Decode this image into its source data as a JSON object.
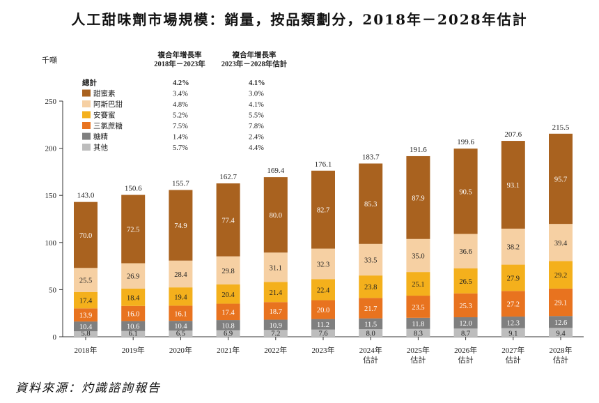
{
  "title": "人工甜味劑市場規模：銷量，按品類劃分，2018年－2028年估計",
  "source": "資料來源：灼識諮詢報告",
  "chart_data": {
    "type": "bar",
    "stacked": true,
    "ylabel": "千噸",
    "ylim": [
      0,
      250
    ],
    "yticks": [
      0,
      50,
      100,
      150,
      200,
      250
    ],
    "categories": [
      "2018年",
      "2019年",
      "2020年",
      "2021年",
      "2022年",
      "2023年",
      "2024年\n估計",
      "2025年\n估計",
      "2026年\n估計",
      "2027年\n估計",
      "2028年\n估計"
    ],
    "series": [
      {
        "name": "其他",
        "color": "#bdbdbd",
        "values": [
          5.8,
          6.1,
          6.5,
          6.9,
          7.2,
          7.6,
          8.0,
          8.3,
          8.7,
          9.1,
          9.4
        ]
      },
      {
        "name": "糖精",
        "color": "#7f7f7f",
        "values": [
          10.4,
          10.6,
          10.4,
          10.8,
          10.9,
          11.2,
          11.5,
          11.8,
          12.0,
          12.3,
          12.6
        ]
      },
      {
        "name": "三氯蔗糖",
        "color": "#e8731f",
        "values": [
          13.9,
          16.0,
          16.1,
          17.4,
          18.7,
          20.0,
          21.7,
          23.5,
          25.3,
          27.2,
          29.1
        ]
      },
      {
        "name": "安賽蜜",
        "color": "#f4b01c",
        "values": [
          17.4,
          18.4,
          19.4,
          20.4,
          21.4,
          22.4,
          23.8,
          25.1,
          26.5,
          27.9,
          29.2
        ]
      },
      {
        "name": "阿斯巴甜",
        "color": "#f6d0a3",
        "values": [
          25.5,
          26.9,
          28.4,
          29.8,
          31.1,
          32.3,
          33.5,
          35.0,
          36.6,
          38.2,
          39.4
        ]
      },
      {
        "name": "甜蜜素",
        "color": "#a9621f",
        "values": [
          70.0,
          72.5,
          74.9,
          77.4,
          80.0,
          82.7,
          85.3,
          87.9,
          90.5,
          93.1,
          95.7
        ]
      }
    ],
    "totals": [
      "143.0",
      "150.6",
      "155.7",
      "162.7",
      "169.4",
      "176.1",
      "183.7",
      "191.6",
      "199.6",
      "207.6",
      "215.5"
    ],
    "cagr_table": {
      "header1": "複合年增長率\n2018年－2023年",
      "header2": "複合年增長率\n2023年－2028年估計",
      "rows": [
        {
          "label": "總計",
          "c1": "4.2%",
          "c2": "4.1%",
          "color": ""
        },
        {
          "label": "甜蜜素",
          "c1": "3.4%",
          "c2": "3.0%",
          "color": "#a9621f"
        },
        {
          "label": "阿斯巴甜",
          "c1": "4.8%",
          "c2": "4.1%",
          "color": "#f6d0a3"
        },
        {
          "label": "安賽蜜",
          "c1": "5.2%",
          "c2": "5.5%",
          "color": "#f4b01c"
        },
        {
          "label": "三氯蔗糖",
          "c1": "7.5%",
          "c2": "7.8%",
          "color": "#e8731f"
        },
        {
          "label": "糖精",
          "c1": "1.4%",
          "c2": "2.4%",
          "color": "#7f7f7f"
        },
        {
          "label": "其他",
          "c1": "5.7%",
          "c2": "4.4%",
          "color": "#bdbdbd"
        }
      ]
    }
  }
}
